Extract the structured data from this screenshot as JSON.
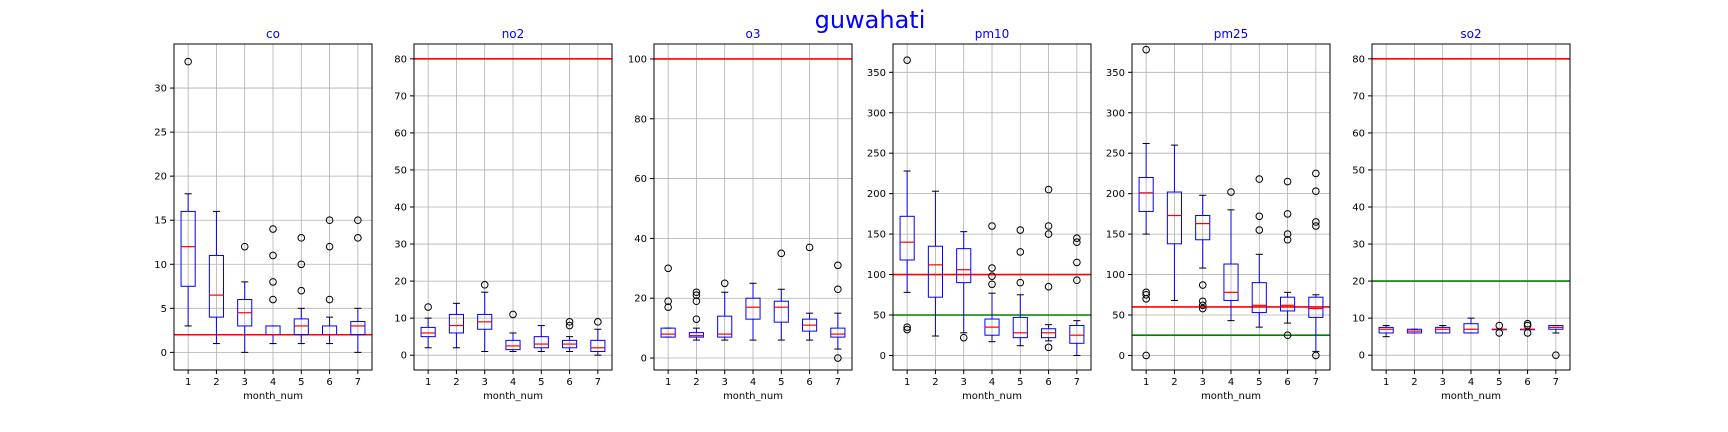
{
  "chart_data": {
    "title": "guwahati",
    "type": "boxplot",
    "colors": {
      "box": "#0000ff",
      "median": "#ff0000",
      "grid": "#b0b0b0",
      "limit_red": "#ff0000",
      "limit_green": "#008000",
      "title": "#0000ff"
    },
    "panels": [
      {
        "title": "co",
        "xlabel": "month_num",
        "grid": true,
        "categories": [
          "1",
          "2",
          "3",
          "4",
          "5",
          "6",
          "7"
        ],
        "ylim": [
          -2,
          35
        ],
        "yticks": [
          0,
          5,
          10,
          15,
          20,
          25,
          30
        ],
        "limits": [
          {
            "y": 2,
            "color": "#ff0000"
          }
        ],
        "boxes": [
          {
            "x": "1",
            "whislo": 3,
            "q1": 7.5,
            "med": 12,
            "q3": 16,
            "whishi": 18,
            "fliers": [
              33
            ]
          },
          {
            "x": "2",
            "whislo": 1,
            "q1": 4,
            "med": 6.5,
            "q3": 11,
            "whishi": 16,
            "fliers": []
          },
          {
            "x": "3",
            "whislo": 0,
            "q1": 3,
            "med": 4.5,
            "q3": 6,
            "whishi": 8,
            "fliers": [
              12
            ]
          },
          {
            "x": "4",
            "whislo": 1,
            "q1": 2,
            "med": 2,
            "q3": 3,
            "whishi": 3,
            "fliers": [
              6,
              8,
              11,
              14
            ]
          },
          {
            "x": "5",
            "whislo": 1,
            "q1": 2,
            "med": 3,
            "q3": 3.8,
            "whishi": 5,
            "fliers": [
              7,
              10,
              13
            ]
          },
          {
            "x": "6",
            "whislo": 1,
            "q1": 2,
            "med": 2,
            "q3": 3,
            "whishi": 4,
            "fliers": [
              6,
              12,
              15
            ]
          },
          {
            "x": "7",
            "whislo": 0,
            "q1": 2,
            "med": 3,
            "q3": 3.5,
            "whishi": 5,
            "fliers": [
              13,
              15
            ]
          }
        ]
      },
      {
        "title": "no2",
        "xlabel": "month_num",
        "grid": true,
        "categories": [
          "1",
          "2",
          "3",
          "4",
          "5",
          "6",
          "7"
        ],
        "ylim": [
          -4,
          84
        ],
        "yticks": [
          0,
          10,
          20,
          30,
          40,
          50,
          60,
          70,
          80
        ],
        "limits": [
          {
            "y": 80,
            "color": "#ff0000"
          }
        ],
        "boxes": [
          {
            "x": "1",
            "whislo": 2,
            "q1": 5,
            "med": 6,
            "q3": 7.5,
            "whishi": 10,
            "fliers": [
              13
            ]
          },
          {
            "x": "2",
            "whislo": 2,
            "q1": 6,
            "med": 8,
            "q3": 11,
            "whishi": 14,
            "fliers": []
          },
          {
            "x": "3",
            "whislo": 1,
            "q1": 7,
            "med": 9,
            "q3": 11,
            "whishi": 17,
            "fliers": [
              19
            ]
          },
          {
            "x": "4",
            "whislo": 1,
            "q1": 1.5,
            "med": 2.5,
            "q3": 4,
            "whishi": 6,
            "fliers": [
              11
            ]
          },
          {
            "x": "5",
            "whislo": 1,
            "q1": 2,
            "med": 3,
            "q3": 5,
            "whishi": 8,
            "fliers": []
          },
          {
            "x": "6",
            "whislo": 1,
            "q1": 2,
            "med": 3,
            "q3": 4,
            "whishi": 5,
            "fliers": [
              8,
              9
            ]
          },
          {
            "x": "7",
            "whislo": 0,
            "q1": 1,
            "med": 2,
            "q3": 4,
            "whishi": 7,
            "fliers": [
              9
            ]
          }
        ]
      },
      {
        "title": "o3",
        "xlabel": "month_num",
        "grid": true,
        "categories": [
          "1",
          "2",
          "3",
          "4",
          "5",
          "6",
          "7"
        ],
        "ylim": [
          -4,
          105
        ],
        "yticks": [
          0,
          20,
          40,
          60,
          80,
          100
        ],
        "limits": [
          {
            "y": 100,
            "color": "#ff0000"
          }
        ],
        "boxes": [
          {
            "x": "1",
            "whislo": 7,
            "q1": 7,
            "med": 8,
            "q3": 10,
            "whishi": 10,
            "fliers": [
              17,
              19,
              30
            ]
          },
          {
            "x": "2",
            "whislo": 6,
            "q1": 7,
            "med": 7.5,
            "q3": 8.5,
            "whishi": 10,
            "fliers": [
              13,
              19,
              21,
              22
            ]
          },
          {
            "x": "3",
            "whislo": 6,
            "q1": 7,
            "med": 8,
            "q3": 14,
            "whishi": 22,
            "fliers": [
              25
            ]
          },
          {
            "x": "4",
            "whislo": 6,
            "q1": 13,
            "med": 17,
            "q3": 20,
            "whishi": 25,
            "fliers": []
          },
          {
            "x": "5",
            "whislo": 6,
            "q1": 12,
            "med": 17,
            "q3": 19,
            "whishi": 23,
            "fliers": [
              35
            ]
          },
          {
            "x": "6",
            "whislo": 6,
            "q1": 9,
            "med": 11,
            "q3": 13,
            "whishi": 15,
            "fliers": [
              37
            ]
          },
          {
            "x": "7",
            "whislo": 3,
            "q1": 7,
            "med": 8,
            "q3": 10,
            "whishi": 15,
            "fliers": [
              0,
              23,
              31
            ]
          }
        ]
      },
      {
        "title": "pm10",
        "xlabel": "month_num",
        "grid": true,
        "categories": [
          "1",
          "2",
          "3",
          "4",
          "5",
          "6",
          "7"
        ],
        "ylim": [
          -18,
          385
        ],
        "yticks": [
          0,
          50,
          100,
          150,
          200,
          250,
          300,
          350
        ],
        "limits": [
          {
            "y": 100,
            "color": "#ff0000"
          },
          {
            "y": 50,
            "color": "#008000"
          }
        ],
        "boxes": [
          {
            "x": "1",
            "whislo": 78,
            "q1": 118,
            "med": 140,
            "q3": 172,
            "whishi": 228,
            "fliers": [
              32,
              35,
              365
            ]
          },
          {
            "x": "2",
            "whislo": 24,
            "q1": 72,
            "med": 112,
            "q3": 135,
            "whishi": 203,
            "fliers": []
          },
          {
            "x": "3",
            "whislo": 28,
            "q1": 90,
            "med": 106,
            "q3": 132,
            "whishi": 153,
            "fliers": [
              22
            ]
          },
          {
            "x": "4",
            "whislo": 17,
            "q1": 25,
            "med": 35,
            "q3": 45,
            "whishi": 77,
            "fliers": [
              88,
              98,
              108,
              160
            ]
          },
          {
            "x": "5",
            "whislo": 12,
            "q1": 22,
            "med": 28,
            "q3": 47,
            "whishi": 75,
            "fliers": [
              90,
              128,
              155
            ]
          },
          {
            "x": "6",
            "whislo": 18,
            "q1": 22,
            "med": 28,
            "q3": 33,
            "whishi": 38,
            "fliers": [
              10,
              85,
              150,
              160,
              205
            ]
          },
          {
            "x": "7",
            "whislo": 0,
            "q1": 15,
            "med": 25,
            "q3": 37,
            "whishi": 43,
            "fliers": [
              93,
              115,
              140,
              145
            ]
          }
        ]
      },
      {
        "title": "pm25",
        "xlabel": "month_num",
        "grid": true,
        "categories": [
          "1",
          "2",
          "3",
          "4",
          "5",
          "6",
          "7"
        ],
        "ylim": [
          -18,
          385
        ],
        "yticks": [
          0,
          50,
          100,
          150,
          200,
          250,
          300,
          350
        ],
        "limits": [
          {
            "y": 60,
            "color": "#ff0000"
          },
          {
            "y": 25,
            "color": "#008000"
          }
        ],
        "boxes": [
          {
            "x": "1",
            "whislo": 150,
            "q1": 178,
            "med": 201,
            "q3": 220,
            "whishi": 262,
            "fliers": [
              0,
              70,
              75,
              78,
              378
            ]
          },
          {
            "x": "2",
            "whislo": 68,
            "q1": 138,
            "med": 173,
            "q3": 202,
            "whishi": 260,
            "fliers": []
          },
          {
            "x": "3",
            "whislo": 108,
            "q1": 143,
            "med": 163,
            "q3": 173,
            "whishi": 198,
            "fliers": [
              58,
              62,
              67,
              87
            ]
          },
          {
            "x": "4",
            "whislo": 43,
            "q1": 68,
            "med": 78,
            "q3": 113,
            "whishi": 180,
            "fliers": [
              202
            ]
          },
          {
            "x": "5",
            "whislo": 35,
            "q1": 53,
            "med": 62,
            "q3": 90,
            "whishi": 125,
            "fliers": [
              155,
              172,
              218
            ]
          },
          {
            "x": "6",
            "whislo": 40,
            "q1": 55,
            "med": 62,
            "q3": 72,
            "whishi": 78,
            "fliers": [
              25,
              143,
              150,
              175,
              215
            ]
          },
          {
            "x": "7",
            "whislo": 5,
            "q1": 47,
            "med": 58,
            "q3": 72,
            "whishi": 75,
            "fliers": [
              0,
              160,
              165,
              203,
              225
            ]
          }
        ]
      },
      {
        "title": "so2",
        "xlabel": "month_num",
        "grid": true,
        "categories": [
          "1",
          "2",
          "3",
          "4",
          "5",
          "6",
          "7"
        ],
        "ylim": [
          -4,
          84
        ],
        "yticks": [
          0,
          10,
          20,
          30,
          40,
          50,
          60,
          70,
          80
        ],
        "limits": [
          {
            "y": 80,
            "color": "#ff0000"
          },
          {
            "y": 20,
            "color": "#008000"
          }
        ],
        "boxes": [
          {
            "x": "1",
            "whislo": 5,
            "q1": 6,
            "med": 7,
            "q3": 7.5,
            "whishi": 8,
            "fliers": []
          },
          {
            "x": "2",
            "whislo": 6,
            "q1": 6,
            "med": 6.5,
            "q3": 7,
            "whishi": 7,
            "fliers": []
          },
          {
            "x": "3",
            "whislo": 6,
            "q1": 6,
            "med": 7,
            "q3": 7.5,
            "whishi": 8,
            "fliers": []
          },
          {
            "x": "4",
            "whislo": 6,
            "q1": 6,
            "med": 7,
            "q3": 8.5,
            "whishi": 10,
            "fliers": []
          },
          {
            "x": "5",
            "whislo": 7,
            "q1": 7,
            "med": 7,
            "q3": 7,
            "whishi": 7,
            "fliers": [
              6,
              8
            ]
          },
          {
            "x": "6",
            "whislo": 7,
            "q1": 7,
            "med": 7,
            "q3": 7,
            "whishi": 7,
            "fliers": [
              6,
              8,
              8.5
            ]
          },
          {
            "x": "7",
            "whislo": 6,
            "q1": 7,
            "med": 7.5,
            "q3": 8,
            "whishi": 8,
            "fliers": [
              0
            ]
          }
        ]
      }
    ]
  }
}
